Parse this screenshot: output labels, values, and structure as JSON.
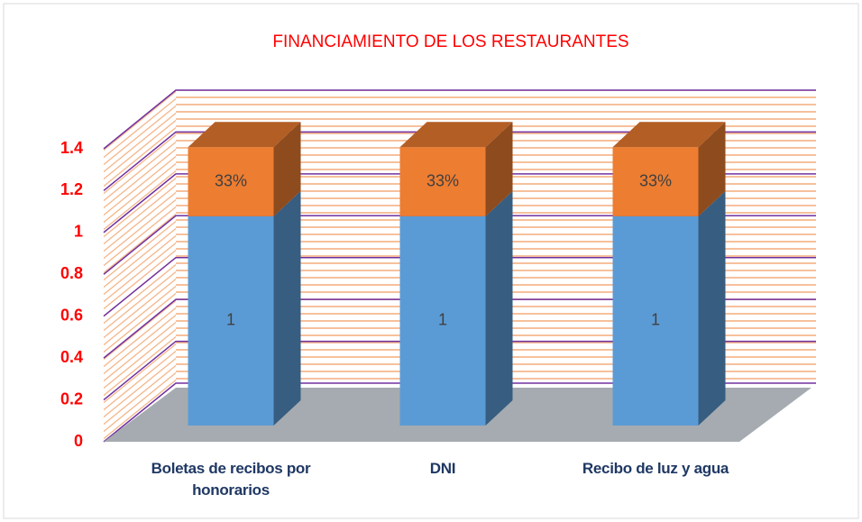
{
  "chart_data": {
    "type": "bar3d_stacked",
    "title": "FINANCIAMIENTO DE LOS RESTAURANTES",
    "categories": [
      "Boletas de recibos por honorarios",
      "DNI",
      "Recibo de luz y agua"
    ],
    "series": [
      {
        "color": "#5b9bd5",
        "values": [
          1,
          1,
          1
        ]
      },
      {
        "color": "#ed7d31",
        "values": [
          0.33,
          0.33,
          0.33
        ],
        "value_labels": [
          "33%",
          "33%",
          "33%"
        ]
      }
    ],
    "ylim": [
      0,
      1.4
    ],
    "yticks": [
      0,
      0.2,
      0.4,
      0.6,
      0.8,
      1,
      1.2,
      1.4
    ],
    "grid": true
  }
}
